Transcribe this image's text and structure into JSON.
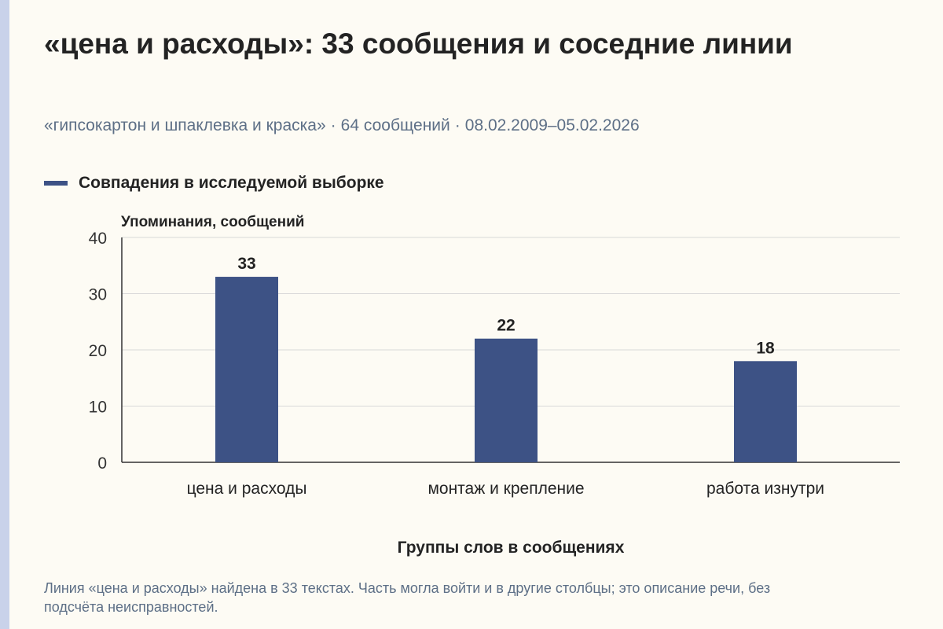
{
  "header": {
    "title": "«цена и расходы»: 33 сообщения и соседние линии",
    "subtitle_query": "«гипсокартон и шпаклевка и краска»",
    "subtitle_count": "64 сообщений",
    "subtitle_dates": "08.02.2009–05.02.2026",
    "subtitle_separator": "·"
  },
  "footnote": "Линия «цена и расходы» найдена в 33 текстах. Часть могла войти и в другие столбцы; это описание речи, без подсчёта неисправностей.",
  "colors": {
    "bar": "#3d5285",
    "accent_strip": "#c9d2ea",
    "grid": "#d8d8d8",
    "axis": "#333333"
  },
  "chart_data": {
    "type": "bar",
    "categories": [
      "цена и расходы",
      "монтаж и крепление",
      "работа изнутри"
    ],
    "series": [
      {
        "name": "Совпадения в исследуемой выборке",
        "values": [
          33,
          22,
          18
        ]
      }
    ],
    "xlabel": "Группы слов в сообщениях",
    "ylabel": "Упоминания, сообщений",
    "ylim": [
      0,
      40
    ],
    "yticks": [
      0,
      10,
      20,
      30,
      40
    ],
    "grid": true,
    "legend_position": "top-left",
    "data_labels": [
      "33",
      "22",
      "18"
    ]
  }
}
